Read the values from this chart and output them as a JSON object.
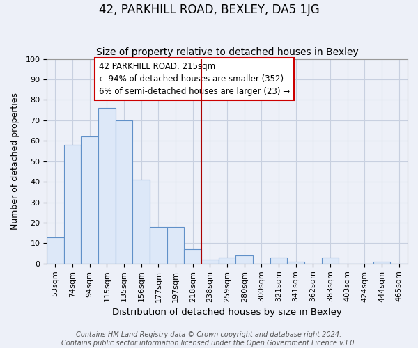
{
  "title": "42, PARKHILL ROAD, BEXLEY, DA5 1JG",
  "subtitle": "Size of property relative to detached houses in Bexley",
  "xlabel": "Distribution of detached houses by size in Bexley",
  "ylabel": "Number of detached properties",
  "bar_labels": [
    "53sqm",
    "74sqm",
    "94sqm",
    "115sqm",
    "135sqm",
    "156sqm",
    "177sqm",
    "197sqm",
    "218sqm",
    "238sqm",
    "259sqm",
    "280sqm",
    "300sqm",
    "321sqm",
    "341sqm",
    "362sqm",
    "383sqm",
    "403sqm",
    "424sqm",
    "444sqm",
    "465sqm"
  ],
  "bar_values": [
    13,
    58,
    62,
    76,
    70,
    41,
    18,
    18,
    7,
    2,
    3,
    4,
    0,
    3,
    1,
    0,
    3,
    0,
    0,
    1,
    0
  ],
  "bar_color": "#dde8f8",
  "bar_edgecolor": "#6090c8",
  "vline_x_index": 8,
  "vline_color": "#aa0000",
  "annotation_line1": "42 PARKHILL ROAD: 215sqm",
  "annotation_line2": "← 94% of detached houses are smaller (352)",
  "annotation_line3": "6% of semi-detached houses are larger (23) →",
  "annotation_box_edgecolor": "#cc0000",
  "annotation_box_facecolor": "#ffffff",
  "ylim": [
    0,
    100
  ],
  "yticks": [
    0,
    10,
    20,
    30,
    40,
    50,
    60,
    70,
    80,
    90,
    100
  ],
  "grid_color": "#c8d0e0",
  "bg_color": "#edf0f8",
  "footer_text": "Contains HM Land Registry data © Crown copyright and database right 2024.\nContains public sector information licensed under the Open Government Licence v3.0.",
  "title_fontsize": 12,
  "subtitle_fontsize": 10,
  "xlabel_fontsize": 9.5,
  "ylabel_fontsize": 9,
  "tick_fontsize": 8,
  "annotation_fontsize": 8.5,
  "footer_fontsize": 7
}
